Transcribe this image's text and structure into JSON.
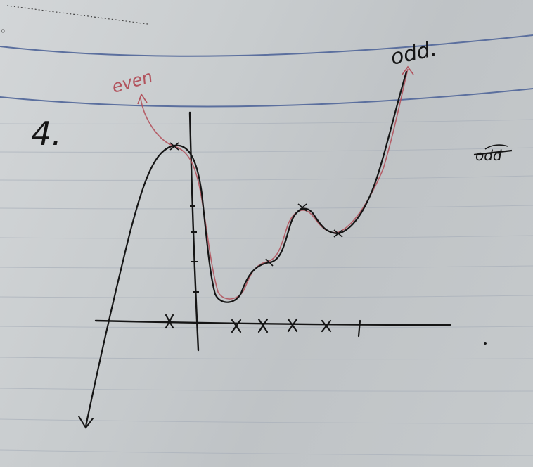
{
  "notes": {
    "question_number": "4.",
    "label_even": "even",
    "label_odd": "odd.",
    "label_odd_crossed": "odd"
  },
  "colors": {
    "paper": "#c9cdd0",
    "rule_line": "#9aa7bd",
    "blue_line": "#5b6f9e",
    "ink": "#151515",
    "red_ink": "#b2535d"
  }
}
